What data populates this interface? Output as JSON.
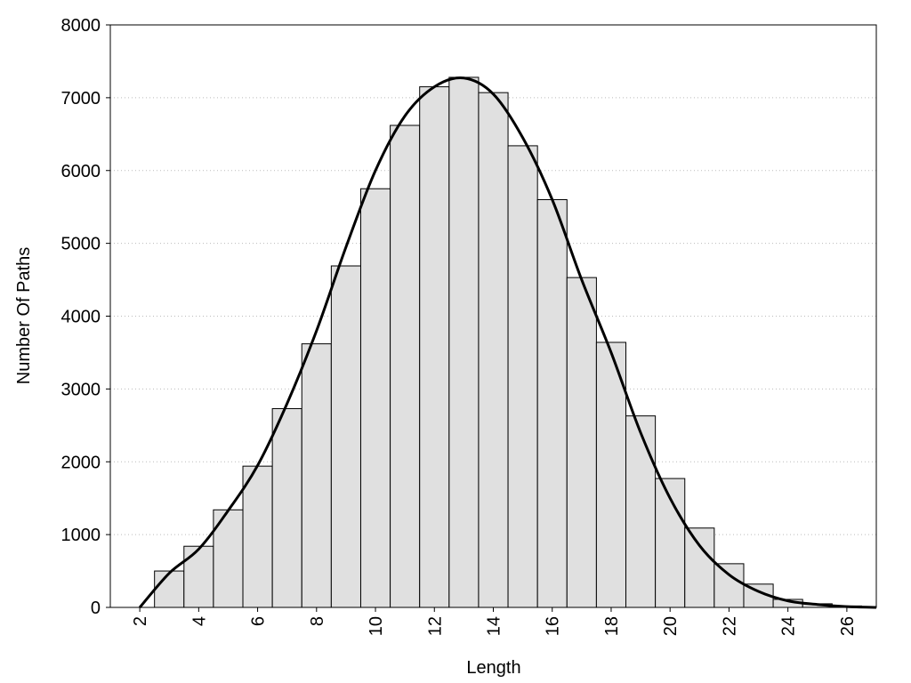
{
  "chart_data": {
    "type": "histogram",
    "xlabel": "Length",
    "ylabel": "Number Of Paths",
    "bins": [
      2.5,
      3.5,
      4.5,
      5.5,
      6.5,
      7.5,
      8.5,
      9.5,
      10.5,
      11.5,
      12.5,
      13.5,
      14.5,
      15.5,
      16.5,
      17.5,
      18.5,
      19.5,
      20.5,
      21.5,
      22.5,
      23.5,
      24.5,
      25.5,
      26.5
    ],
    "counts": [
      500,
      840,
      1340,
      1940,
      2730,
      3620,
      4690,
      5750,
      6620,
      7150,
      7280,
      7070,
      6340,
      5600,
      4530,
      3640,
      2630,
      1770,
      1090,
      600,
      320,
      110,
      50,
      20
    ],
    "bar_color": "#e0e0e0",
    "curve": {
      "x": [
        2,
        3,
        4,
        5,
        6,
        7,
        8,
        9,
        10,
        11,
        12,
        13,
        14,
        15,
        16,
        17,
        18,
        19,
        20,
        21,
        22,
        23,
        24,
        25,
        26,
        27
      ],
      "values": [
        0,
        470,
        800,
        1330,
        1950,
        2800,
        3800,
        4950,
        6000,
        6750,
        7150,
        7270,
        7050,
        6450,
        5600,
        4500,
        3500,
        2400,
        1500,
        850,
        450,
        220,
        90,
        40,
        10,
        0
      ],
      "color": "#000000"
    },
    "xlim": [
      1,
      27
    ],
    "ylim": [
      0,
      8000
    ],
    "xticks": [
      2,
      4,
      6,
      8,
      10,
      12,
      14,
      16,
      18,
      20,
      22,
      24,
      26
    ],
    "yticks": [
      0,
      1000,
      2000,
      3000,
      4000,
      5000,
      6000,
      7000,
      8000
    ],
    "grid": true
  }
}
